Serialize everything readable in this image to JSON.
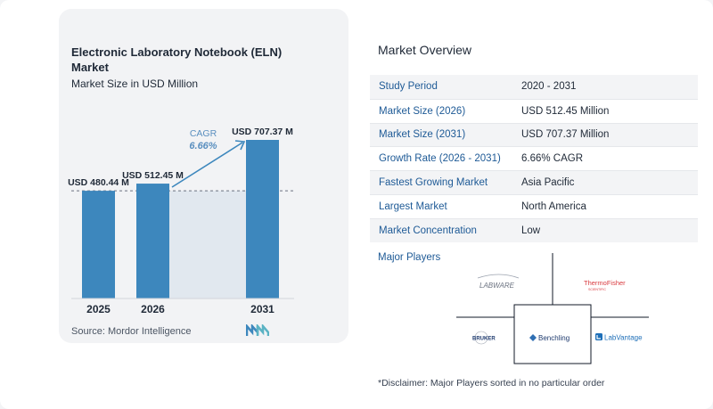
{
  "chart": {
    "title": "Electronic Laboratory Notebook (ELN) Market",
    "subtitle": "Market Size in USD Million",
    "source": "Source:  Mordor Intelligence",
    "cagr_label": "CAGR",
    "cagr_value": "6.66%"
  },
  "chart_data": {
    "type": "bar",
    "title": "Electronic Laboratory Notebook (ELN) Market",
    "subtitle": "Market Size in USD Million",
    "categories": [
      "2025",
      "2026",
      "2031"
    ],
    "values": [
      480.44,
      512.45,
      707.37
    ],
    "data_labels": [
      "USD 480.44 M",
      "USD 512.45 M",
      "USD 707.37 M"
    ],
    "unit": "USD Million",
    "annotation": {
      "label": "CAGR",
      "value": "6.66%"
    },
    "colors": {
      "bar": "#3d87bd",
      "shade": "#e1e8ef",
      "arrow": "#3d87bd",
      "cagr_text": "#5a8fbf"
    },
    "grid": false,
    "legend": "none"
  },
  "overview": {
    "title": "Market Overview",
    "rows": [
      {
        "label": "Study Period",
        "value": "2020 - 2031"
      },
      {
        "label": "Market Size (2026)",
        "value": "USD 512.45 Million"
      },
      {
        "label": "Market Size (2031)",
        "value": "USD 707.37 Million"
      },
      {
        "label": "Growth Rate (2026 - 2031)",
        "value": "6.66% CAGR"
      },
      {
        "label": "Fastest Growing Market",
        "value": "Asia Pacific"
      },
      {
        "label": "Largest Market",
        "value": "North America"
      },
      {
        "label": "Market Concentration",
        "value": "Low"
      }
    ],
    "players_label": "Major Players",
    "players": [
      "LABWARE",
      "ThermoFisher",
      "SCIENTIFIC",
      "BRUKER",
      "Benchling",
      "LabVantage"
    ],
    "disclaimer": "*Disclaimer: Major Players sorted in no particular order"
  },
  "colors": {
    "label_blue": "#1e5a96",
    "row_shade": "#f3f4f6",
    "thermo_red": "#d9393e"
  }
}
